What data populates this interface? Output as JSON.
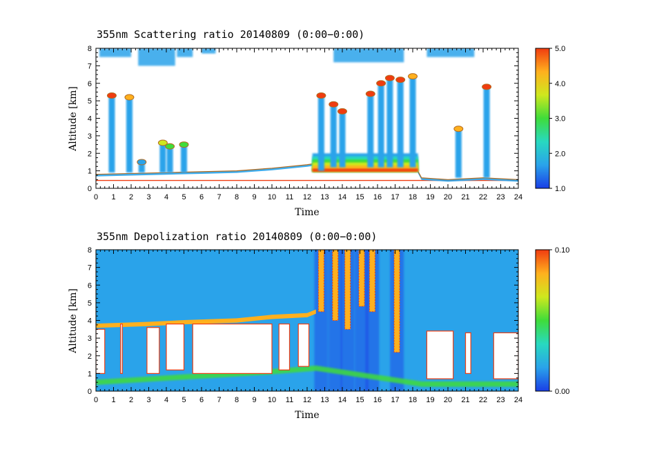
{
  "chart_data": [
    {
      "type": "heatmap",
      "title": "355nm Scattering ratio  20140809 (0:00−0:00)",
      "xlabel": "Time",
      "ylabel": "Altitude [km]",
      "xlim": [
        0,
        24
      ],
      "ylim": [
        0,
        8
      ],
      "x_ticks": [
        "0",
        "1",
        "2",
        "3",
        "4",
        "5",
        "6",
        "7",
        "8",
        "9",
        "10",
        "11",
        "12",
        "13",
        "14",
        "15",
        "16",
        "17",
        "18",
        "19",
        "20",
        "21",
        "22",
        "23",
        "24"
      ],
      "y_ticks": [
        "0",
        "1",
        "2",
        "3",
        "4",
        "5",
        "6",
        "7",
        "8"
      ],
      "colorbar": {
        "range": [
          1.0,
          5.0
        ],
        "ticks": [
          "5.0",
          "4.0",
          "3.0",
          "2.0",
          "1.0"
        ],
        "colors": [
          "#1a3ee6",
          "#2aa3ea",
          "#28d9c0",
          "#3fdc3a",
          "#cfe81e",
          "#ffb01e",
          "#f03c10"
        ]
      },
      "features": {
        "boundary_layer_top_km": [
          [
            0,
            0.8
          ],
          [
            2,
            0.85
          ],
          [
            4,
            0.9
          ],
          [
            6,
            0.95
          ],
          [
            8,
            1.0
          ],
          [
            10,
            1.15
          ],
          [
            12,
            1.35
          ],
          [
            13,
            1.5
          ],
          [
            15,
            1.6
          ],
          [
            17,
            1.6
          ],
          [
            18,
            1.55
          ],
          [
            18.5,
            0.6
          ],
          [
            20,
            0.5
          ],
          [
            22,
            0.6
          ],
          [
            24,
            0.5
          ]
        ],
        "aerosol_layer": {
          "start_h": 12.3,
          "end_h": 18.3,
          "base_km": 0.95,
          "top_km": 2.0,
          "peak_ratio": 4.8
        },
        "cloud_columns": [
          {
            "x_h": 0.9,
            "base_km": 0.9,
            "top_km": 5.3,
            "ratio": 5.0
          },
          {
            "x_h": 1.9,
            "base_km": 0.9,
            "top_km": 5.2,
            "ratio": 4.5
          },
          {
            "x_h": 2.6,
            "base_km": 0.9,
            "top_km": 1.5,
            "ratio": 1.8
          },
          {
            "x_h": 3.8,
            "base_km": 0.9,
            "top_km": 2.6,
            "ratio": 3.5
          },
          {
            "x_h": 4.2,
            "base_km": 0.9,
            "top_km": 2.4,
            "ratio": 3.2
          },
          {
            "x_h": 5.0,
            "base_km": 0.9,
            "top_km": 2.5,
            "ratio": 3.0
          },
          {
            "x_h": 12.8,
            "base_km": 1.0,
            "top_km": 5.3,
            "ratio": 5.0
          },
          {
            "x_h": 13.5,
            "base_km": 1.2,
            "top_km": 4.8,
            "ratio": 5.0
          },
          {
            "x_h": 14.0,
            "base_km": 1.2,
            "top_km": 4.4,
            "ratio": 4.8
          },
          {
            "x_h": 15.6,
            "base_km": 1.2,
            "top_km": 5.4,
            "ratio": 5.0
          },
          {
            "x_h": 16.2,
            "base_km": 1.2,
            "top_km": 6.0,
            "ratio": 5.0
          },
          {
            "x_h": 16.7,
            "base_km": 1.2,
            "top_km": 6.3,
            "ratio": 5.0
          },
          {
            "x_h": 17.3,
            "base_km": 1.2,
            "top_km": 6.2,
            "ratio": 5.0
          },
          {
            "x_h": 18.0,
            "base_km": 1.2,
            "top_km": 6.4,
            "ratio": 4.0
          },
          {
            "x_h": 20.6,
            "base_km": 0.6,
            "top_km": 3.4,
            "ratio": 4.0
          },
          {
            "x_h": 22.2,
            "base_km": 0.6,
            "top_km": 5.8,
            "ratio": 5.0
          }
        ],
        "upper_cloud_bands": [
          {
            "start_h": 0.2,
            "end_h": 2.0,
            "base_km": 7.5,
            "top_km": 8.0
          },
          {
            "start_h": 2.4,
            "end_h": 4.5,
            "base_km": 7.0,
            "top_km": 8.0
          },
          {
            "start_h": 4.6,
            "end_h": 5.5,
            "base_km": 7.5,
            "top_km": 8.0
          },
          {
            "start_h": 6.0,
            "end_h": 6.8,
            "base_km": 7.7,
            "top_km": 8.0
          },
          {
            "start_h": 13.5,
            "end_h": 17.5,
            "base_km": 7.2,
            "top_km": 8.0
          },
          {
            "start_h": 18.8,
            "end_h": 21.5,
            "base_km": 7.5,
            "top_km": 8.0
          }
        ]
      }
    },
    {
      "type": "heatmap",
      "title": "355nm Depolization ratio  20140809 (0:00−0:00)",
      "xlabel": "Time",
      "ylabel": "Altitude [km]",
      "xlim": [
        0,
        24
      ],
      "ylim": [
        0,
        8
      ],
      "x_ticks": [
        "0",
        "1",
        "2",
        "3",
        "4",
        "5",
        "6",
        "7",
        "8",
        "9",
        "10",
        "11",
        "12",
        "13",
        "14",
        "15",
        "16",
        "17",
        "18",
        "19",
        "20",
        "21",
        "22",
        "23",
        "24"
      ],
      "y_ticks": [
        "0",
        "1",
        "2",
        "3",
        "4",
        "5",
        "6",
        "7",
        "8"
      ],
      "colorbar": {
        "range": [
          0.0,
          0.1
        ],
        "ticks": [
          "0.10",
          "0.00"
        ],
        "colors": [
          "#1a3ee6",
          "#2aa3ea",
          "#28d9c0",
          "#3fdc3a",
          "#cfe81e",
          "#ffb01e",
          "#f03c10"
        ]
      },
      "features": {
        "cloud_top_edge_km": [
          [
            0,
            3.7
          ],
          [
            3,
            3.8
          ],
          [
            5,
            3.9
          ],
          [
            8,
            4.0
          ],
          [
            10,
            4.2
          ],
          [
            12,
            4.3
          ],
          [
            12.5,
            4.5
          ]
        ],
        "masked_regions": [
          {
            "start_h": 0.0,
            "end_h": 0.5,
            "base_km": 1.0,
            "top_km": 3.5
          },
          {
            "start_h": 1.4,
            "end_h": 1.5,
            "base_km": 1.0,
            "top_km": 3.8
          },
          {
            "start_h": 2.9,
            "end_h": 3.6,
            "base_km": 1.0,
            "top_km": 3.6
          },
          {
            "start_h": 4.0,
            "end_h": 5.0,
            "base_km": 1.2,
            "top_km": 3.8
          },
          {
            "start_h": 5.5,
            "end_h": 10.0,
            "base_km": 1.0,
            "top_km": 3.8
          },
          {
            "start_h": 10.4,
            "end_h": 11.0,
            "base_km": 1.2,
            "top_km": 3.8
          },
          {
            "start_h": 11.5,
            "end_h": 12.1,
            "base_km": 1.4,
            "top_km": 3.8
          },
          {
            "start_h": 18.8,
            "end_h": 20.3,
            "base_km": 0.7,
            "top_km": 3.4
          },
          {
            "start_h": 21.0,
            "end_h": 21.3,
            "base_km": 1.0,
            "top_km": 3.3
          },
          {
            "start_h": 22.6,
            "end_h": 24.0,
            "base_km": 0.7,
            "top_km": 3.3
          }
        ],
        "high_depol_columns": [
          {
            "x_h": 12.8,
            "base_km": 4.5,
            "top_km": 8.0
          },
          {
            "x_h": 13.6,
            "base_km": 4.0,
            "top_km": 8.0
          },
          {
            "x_h": 14.3,
            "base_km": 3.5,
            "top_km": 8.0
          },
          {
            "x_h": 15.1,
            "base_km": 4.8,
            "top_km": 8.0
          },
          {
            "x_h": 15.7,
            "base_km": 4.5,
            "top_km": 8.0
          },
          {
            "x_h": 17.1,
            "base_km": 2.2,
            "top_km": 8.0
          }
        ],
        "boundary_layer_km": [
          [
            0,
            0.5
          ],
          [
            5,
            0.8
          ],
          [
            10,
            1.1
          ],
          [
            12.5,
            1.3
          ],
          [
            18.5,
            0.4
          ],
          [
            24,
            0.4
          ]
        ]
      }
    }
  ]
}
